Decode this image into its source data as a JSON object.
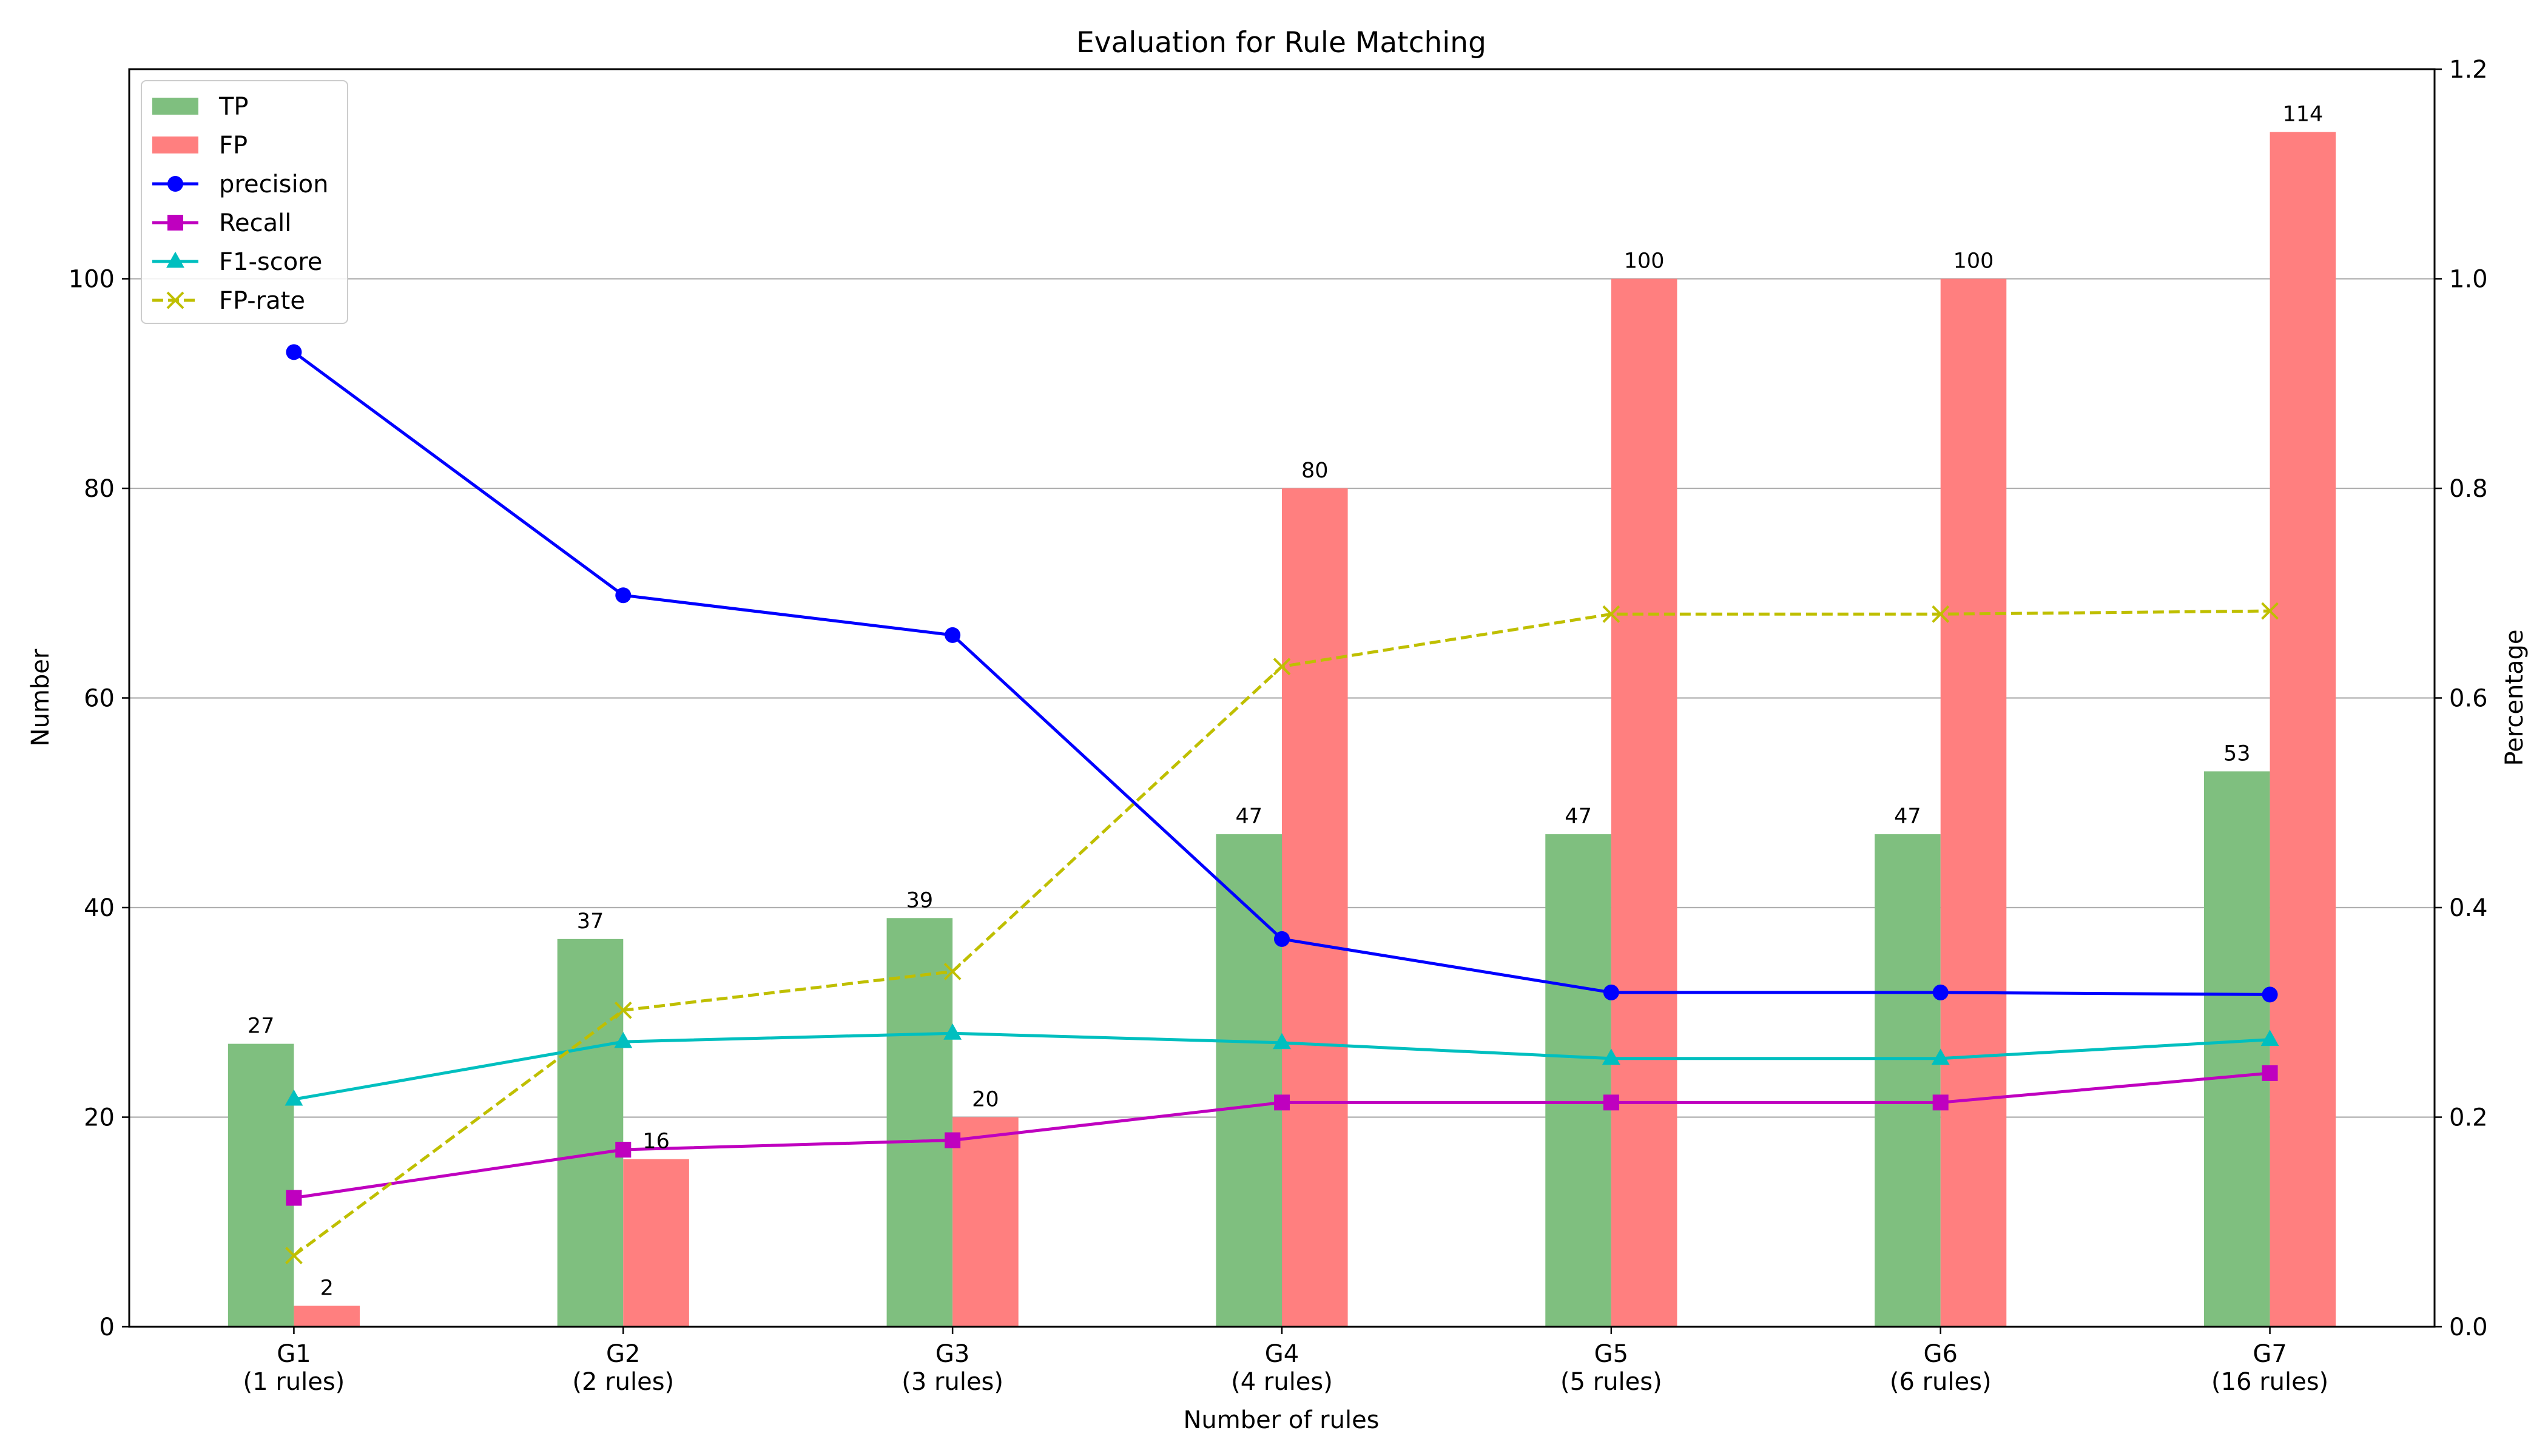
{
  "chart_data": {
    "type": "bar",
    "title": "Evaluation for Rule Matching",
    "xlabel": "Number of rules",
    "ylabel_left": "Number",
    "ylabel_right": "Percentage",
    "categories": [
      [
        "G1",
        "(1 rules)"
      ],
      [
        "G2",
        "(2 rules)"
      ],
      [
        "G3",
        "(3 rules)"
      ],
      [
        "G4",
        "(4 rules)"
      ],
      [
        "G5",
        "(5 rules)"
      ],
      [
        "G6",
        "(6 rules)"
      ],
      [
        "G7",
        "(16 rules)"
      ]
    ],
    "ylim_left": [
      0,
      120
    ],
    "yticks_left": [
      0,
      20,
      40,
      60,
      80,
      100
    ],
    "ylim_right": [
      0,
      1.2
    ],
    "yticks_right": [
      "0.0",
      "0.2",
      "0.4",
      "0.6",
      "0.8",
      "1.0",
      "1.2"
    ],
    "grid": "horizontal, left axis",
    "legend_position": "top-left",
    "bar_series": [
      {
        "name": "TP",
        "color": "#7fbf7f",
        "values": [
          27,
          37,
          39,
          47,
          47,
          47,
          53
        ]
      },
      {
        "name": "FP",
        "color": "#ff7f7f",
        "values": [
          2,
          16,
          20,
          80,
          100,
          100,
          114
        ]
      }
    ],
    "line_series": [
      {
        "name": "precision",
        "color": "#0000ff",
        "marker": "circle",
        "dash": "solid",
        "values": [
          0.93,
          0.698,
          0.66,
          0.37,
          0.319,
          0.319,
          0.317
        ]
      },
      {
        "name": "Recall",
        "color": "#bf00bf",
        "marker": "square",
        "dash": "solid",
        "values": [
          0.123,
          0.169,
          0.178,
          0.214,
          0.214,
          0.214,
          0.242
        ]
      },
      {
        "name": "F1-score",
        "color": "#00bfbf",
        "marker": "triangle",
        "dash": "solid",
        "values": [
          0.217,
          0.272,
          0.28,
          0.271,
          0.256,
          0.256,
          0.274
        ]
      },
      {
        "name": "FP-rate",
        "color": "#bfbf00",
        "marker": "x",
        "dash": "dashed",
        "values": [
          0.068,
          0.302,
          0.339,
          0.63,
          0.68,
          0.68,
          0.683
        ]
      }
    ]
  }
}
